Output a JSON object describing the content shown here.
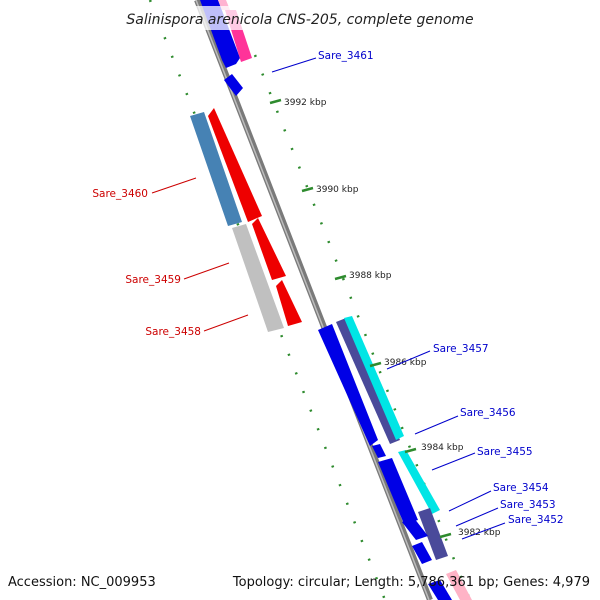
{
  "title": "Salinispora arenicola CNS-205, complete genome",
  "accession": "Accession: NC_009953",
  "summary": "Topology: circular; Length: 5,786,361 bp; Genes: 4,979",
  "colors": {
    "forward_label": "#0000cc",
    "reverse_label": "#cc0000",
    "backbone": "#808080",
    "tick": "#2e8b2e"
  },
  "ticks": [
    "3992 kbp",
    "3990 kbp",
    "3988 kbp",
    "3986 kbp",
    "3984 kbp",
    "3982 kbp"
  ],
  "genes": [
    {
      "name": "Sare_3461",
      "strand": "forward"
    },
    {
      "name": "Sare_3460",
      "strand": "reverse"
    },
    {
      "name": "Sare_3459",
      "strand": "reverse"
    },
    {
      "name": "Sare_3458",
      "strand": "reverse"
    },
    {
      "name": "Sare_3457",
      "strand": "forward"
    },
    {
      "name": "Sare_3456",
      "strand": "forward"
    },
    {
      "name": "Sare_3455",
      "strand": "forward"
    },
    {
      "name": "Sare_3454",
      "strand": "forward"
    },
    {
      "name": "Sare_3453",
      "strand": "forward"
    },
    {
      "name": "Sare_3452",
      "strand": "forward"
    }
  ]
}
